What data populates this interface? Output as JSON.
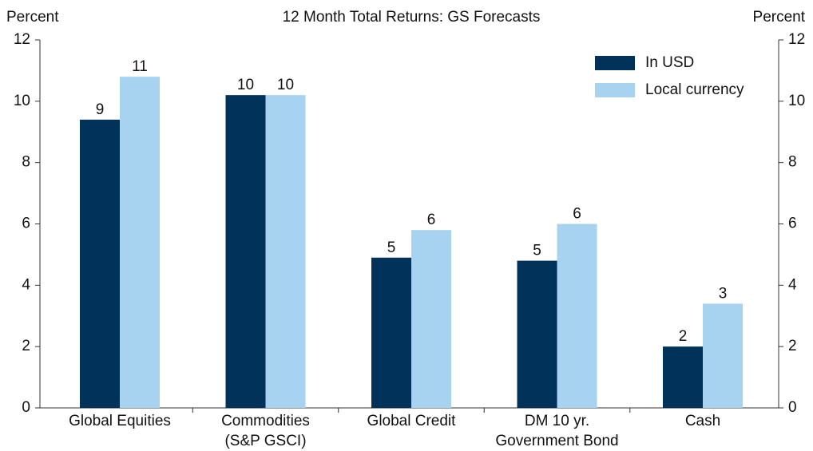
{
  "chart_data": {
    "type": "bar",
    "title": "12 Month Total Returns: GS Forecasts",
    "ylabel": "Percent",
    "y2label": "Percent",
    "categories": [
      "Global Equities",
      "Commodities\n(S&P GSCI)",
      "Global Credit",
      "DM 10 yr.\nGovernment Bond",
      "Cash"
    ],
    "series": [
      {
        "name": "In USD",
        "color": "#00325a",
        "values": [
          9.4,
          10.2,
          4.9,
          4.8,
          2.0
        ],
        "value_labels": [
          "9",
          "10",
          "5",
          "5",
          "2"
        ]
      },
      {
        "name": "Local currency",
        "color": "#a8d3f0",
        "values": [
          10.8,
          10.2,
          5.8,
          6.0,
          3.4
        ],
        "value_labels": [
          "11",
          "10",
          "6",
          "6",
          "3"
        ]
      }
    ],
    "ylim": [
      0,
      12
    ],
    "yticks": [
      0,
      2,
      4,
      6,
      8,
      10,
      12
    ],
    "y2lim": [
      0,
      12
    ],
    "y2ticks": [
      0,
      2,
      4,
      6,
      8,
      10,
      12
    ],
    "legend": "upper right"
  }
}
